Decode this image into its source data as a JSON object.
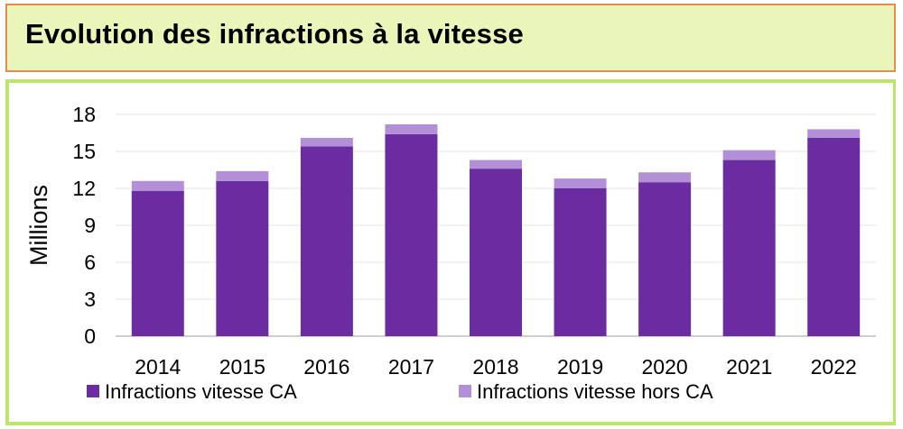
{
  "title": "Evolution des infractions à la vitesse",
  "colors": {
    "title_bg": "#e9f5b9",
    "title_border": "#e88c4c",
    "frame_border": "#bde56e",
    "series_ca": "#6a2ca0",
    "series_hors_ca": "#b28fd6"
  },
  "chart_data": {
    "type": "bar",
    "stacked": true,
    "title": "Evolution des infractions à la vitesse",
    "xlabel": "",
    "ylabel": "Millions",
    "ylim": [
      0,
      18
    ],
    "yticks": [
      0,
      3,
      6,
      9,
      12,
      15,
      18
    ],
    "grid": true,
    "legend_position": "bottom",
    "categories": [
      "2014",
      "2015",
      "2016",
      "2017",
      "2018",
      "2019",
      "2020",
      "2021",
      "2022"
    ],
    "series": [
      {
        "name": "Infractions vitesse CA",
        "values": [
          11.8,
          12.6,
          15.4,
          16.4,
          13.6,
          12.0,
          12.5,
          14.3,
          16.1
        ]
      },
      {
        "name": "Infractions vitesse hors CA",
        "values": [
          0.8,
          0.8,
          0.7,
          0.8,
          0.7,
          0.8,
          0.8,
          0.8,
          0.7
        ]
      }
    ]
  }
}
